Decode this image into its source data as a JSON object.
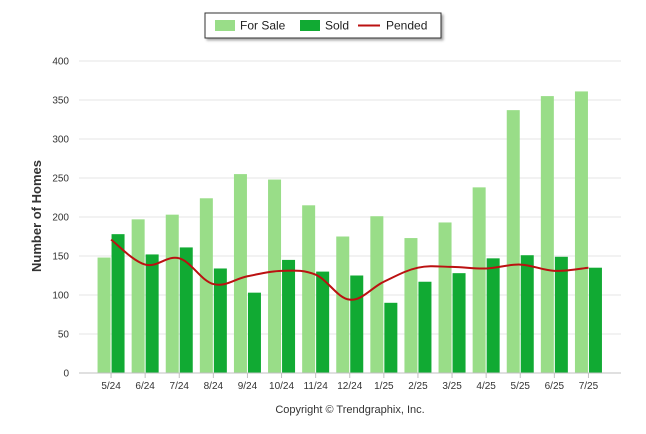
{
  "chart_data": {
    "type": "bar",
    "title": "",
    "xlabel": "",
    "ylabel": "Number of Homes",
    "ylim": [
      0,
      400
    ],
    "yticks": [
      0,
      50,
      100,
      150,
      200,
      250,
      300,
      350,
      400
    ],
    "grid": true,
    "legend_position": "top-center",
    "categories": [
      "5/24",
      "6/24",
      "7/24",
      "8/24",
      "9/24",
      "10/24",
      "11/24",
      "12/24",
      "1/25",
      "2/25",
      "3/25",
      "4/25",
      "5/25",
      "6/25",
      "7/25"
    ],
    "series": [
      {
        "name": "For Sale",
        "kind": "bar",
        "color": "#99dd88",
        "values": [
          148,
          197,
          203,
          224,
          255,
          248,
          215,
          175,
          201,
          173,
          193,
          238,
          337,
          355,
          361
        ]
      },
      {
        "name": "Sold",
        "kind": "bar",
        "color": "#11aa33",
        "values": [
          178,
          152,
          161,
          134,
          103,
          145,
          130,
          125,
          90,
          117,
          128,
          147,
          151,
          149,
          135
        ]
      },
      {
        "name": "Pended",
        "kind": "line",
        "color": "#bb1111",
        "values": [
          171,
          139,
          147,
          114,
          124,
          131,
          126,
          94,
          117,
          135,
          136,
          134,
          139,
          131,
          135
        ]
      }
    ],
    "footer": "Copyright © Trendgraphix, Inc."
  }
}
